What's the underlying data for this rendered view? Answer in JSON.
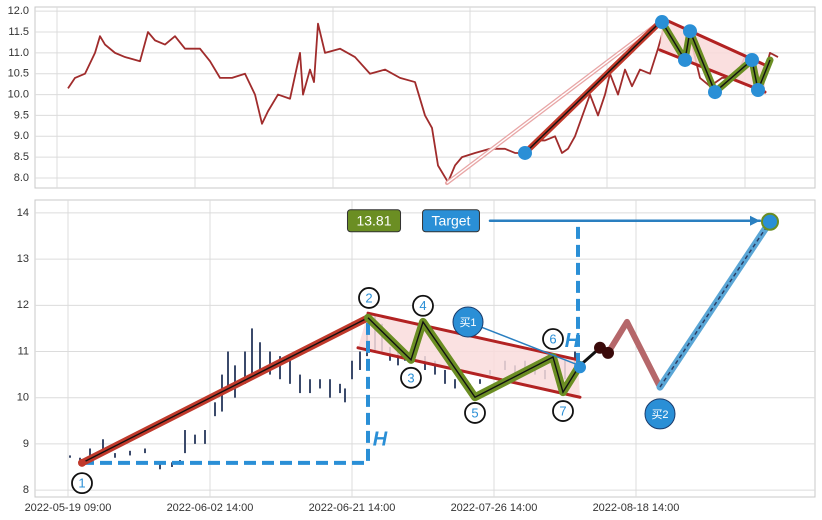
{
  "chart_data": [
    {
      "type": "line",
      "xlim": [
        -33,
        747
      ],
      "ylim": [
        7.76,
        12.1
      ],
      "grid": true,
      "xtick_labels": false,
      "xticks": [
        -11,
        127,
        265,
        402,
        539,
        677
      ],
      "yticks": [
        {
          "value": 8,
          "label": "8.0"
        },
        {
          "value": 8.5,
          "label": "8.5"
        },
        {
          "value": 9,
          "label": "9.0"
        },
        {
          "value": 9.5,
          "label": "9.5"
        },
        {
          "value": 10,
          "label": "10.0"
        },
        {
          "value": 10.5,
          "label": "10.5"
        },
        {
          "value": 11,
          "label": "11.0"
        },
        {
          "value": 11.5,
          "label": "11.5"
        },
        {
          "value": 12,
          "label": "12.0"
        }
      ],
      "x": [
        0,
        7,
        17,
        27,
        32,
        37,
        47,
        57,
        72,
        80,
        87,
        97,
        107,
        117,
        132,
        142,
        152,
        164,
        177,
        187,
        194,
        200,
        210,
        222,
        232,
        235,
        242,
        246,
        250,
        257,
        272,
        287,
        302,
        317,
        332,
        347,
        357,
        364,
        370,
        380,
        387,
        394,
        407,
        422,
        437,
        447,
        457,
        467,
        477,
        487,
        494,
        500,
        507,
        522,
        530,
        537,
        542,
        550,
        557,
        564,
        572,
        582,
        590,
        597,
        604,
        614,
        622,
        632,
        642,
        654,
        667,
        677,
        687,
        694,
        702,
        710
      ],
      "values": [
        10.15,
        10.4,
        10.5,
        11.0,
        11.4,
        11.2,
        11.0,
        10.9,
        10.8,
        11.5,
        11.3,
        11.2,
        11.4,
        11.1,
        11.1,
        10.8,
        10.4,
        10.4,
        10.5,
        10.0,
        9.3,
        9.6,
        10.0,
        9.9,
        11.0,
        10.0,
        10.6,
        10.3,
        11.7,
        11.0,
        11.1,
        10.9,
        10.5,
        10.6,
        10.4,
        10.3,
        9.5,
        9.2,
        8.3,
        7.9,
        8.3,
        8.5,
        8.6,
        8.7,
        8.7,
        8.6,
        8.6,
        8.9,
        8.9,
        9.0,
        8.6,
        8.7,
        9.0,
        10.0,
        9.5,
        10.0,
        10.5,
        10.0,
        10.6,
        10.2,
        10.6,
        10.5,
        11.1,
        11.7,
        11.3,
        10.8,
        11.4,
        10.4,
        10.2,
        10.4,
        10.4,
        10.9,
        10.6,
        10.3,
        11.0,
        10.9
      ],
      "color": "#a02c2c",
      "overlays": [
        {
          "style": "area",
          "color": "#f9d9d9",
          "x": [
            594,
            697,
            697,
            592
          ],
          "values": [
            11.83,
            10.71,
            10.06,
            11.07
          ]
        },
        {
          "style": "line",
          "color": "#e8a6a6",
          "width": 4,
          "inner": "#ffffff",
          "x": [
            379,
            594
          ],
          "values": [
            7.88,
            11.78
          ]
        },
        {
          "style": "line",
          "color": "#b22222",
          "width": 3,
          "x": [
            594,
            697
          ],
          "values": [
            11.83,
            10.71
          ]
        },
        {
          "style": "line",
          "color": "#b22222",
          "width": 3,
          "x": [
            592,
            697
          ],
          "values": [
            11.07,
            10.06
          ]
        },
        {
          "style": "line",
          "color": "#c0392b",
          "width": 6,
          "inner": "#111111",
          "x": [
            457,
            594
          ],
          "values": [
            8.6,
            11.78
          ]
        },
        {
          "style": "line",
          "color": "#6b8e23",
          "width": 7,
          "inner": "#111111",
          "x": [
            594,
            617,
            622,
            647,
            684,
            690,
            702
          ],
          "values": [
            11.74,
            10.83,
            11.52,
            10.06,
            10.83,
            10.11,
            10.83
          ]
        },
        {
          "style": "markers",
          "color": "#2a8fd6",
          "r": 7,
          "x": [
            457,
            594,
            622,
            617,
            647,
            684,
            690
          ],
          "values": [
            8.6,
            11.74,
            11.52,
            10.83,
            10.06,
            10.83,
            10.11
          ]
        }
      ]
    },
    {
      "type": "candlestick",
      "xlim": [
        -33,
        747
      ],
      "ylim": [
        7.85,
        14.28
      ],
      "grid": true,
      "xticks": [
        {
          "value": 0,
          "label": "2022-05-19 09:00"
        },
        {
          "value": 142,
          "label": "2022-06-02 14:00"
        },
        {
          "value": 284,
          "label": "2022-06-21 14:00"
        },
        {
          "value": 426,
          "label": "2022-07-26 14:00"
        },
        {
          "value": 568,
          "label": "2022-08-18 14:00"
        }
      ],
      "yticks": [
        8,
        9,
        10,
        11,
        12,
        13,
        14
      ],
      "color": "#3b4a6b",
      "x": [
        2,
        12,
        22,
        35,
        47,
        62,
        77,
        92,
        104,
        112,
        117,
        127,
        137,
        147,
        154,
        160,
        167,
        177,
        184,
        192,
        202,
        212,
        222,
        232,
        242,
        252,
        262,
        272,
        277,
        284,
        292,
        299,
        307,
        314,
        322,
        330,
        337,
        347,
        357,
        367,
        377,
        387,
        402,
        412,
        422,
        437,
        447,
        457,
        467,
        477,
        487,
        497,
        507
      ],
      "low": [
        8.7,
        8.65,
        8.7,
        8.75,
        8.7,
        8.75,
        8.8,
        8.45,
        8.5,
        8.55,
        8.8,
        9.0,
        9.0,
        9.6,
        9.7,
        10.2,
        10.0,
        10.3,
        10.5,
        10.6,
        10.5,
        10.4,
        10.3,
        10.1,
        10.1,
        10.2,
        10.0,
        10.1,
        9.9,
        10.4,
        10.6,
        10.9,
        11.0,
        11.0,
        10.8,
        10.7,
        10.8,
        10.9,
        10.6,
        10.5,
        10.3,
        10.2,
        10.1,
        10.3,
        10.5,
        10.6,
        10.5,
        10.6,
        10.5,
        10.4,
        10.6,
        10.4,
        10.6
      ],
      "high": [
        8.75,
        8.7,
        8.9,
        9.1,
        8.8,
        8.85,
        8.9,
        8.6,
        8.6,
        8.65,
        9.3,
        9.2,
        9.3,
        9.9,
        10.5,
        11.0,
        10.7,
        11.0,
        11.5,
        11.2,
        11.0,
        10.9,
        10.8,
        10.5,
        10.4,
        10.4,
        10.4,
        10.3,
        10.2,
        10.8,
        11.0,
        11.8,
        11.8,
        11.6,
        11.1,
        11.2,
        11.0,
        11.2,
        10.9,
        10.8,
        10.6,
        10.4,
        10.3,
        10.4,
        10.6,
        10.8,
        10.7,
        10.8,
        10.7,
        10.6,
        10.9,
        10.8,
        11.0
      ],
      "overlays": [
        {
          "style": "area",
          "color": "#f9dcdc",
          "x": [
            300,
            510,
            512,
            290
          ],
          "values": [
            11.83,
            10.82,
            10.01,
            11.08
          ]
        },
        {
          "style": "line",
          "color": "#b22222",
          "width": 3,
          "x": [
            300,
            510
          ],
          "values": [
            11.83,
            10.82
          ]
        },
        {
          "style": "line",
          "color": "#b22222",
          "width": 3,
          "x": [
            290,
            512
          ],
          "values": [
            11.08,
            10.01
          ]
        },
        {
          "style": "line",
          "color": "#2a8fd6",
          "width": 4,
          "dash": true,
          "x": [
            14,
            300,
            300
          ],
          "values": [
            8.59,
            8.59,
            11.68
          ]
        },
        {
          "style": "line",
          "color": "#2a8fd6",
          "width": 4,
          "dash": true,
          "x": [
            510,
            510
          ],
          "values": [
            10.71,
            13.83
          ]
        },
        {
          "style": "line",
          "color": "#2a7fc0",
          "width": 2.5,
          "arrow": true,
          "x": [
            422,
            692
          ],
          "values": [
            13.83,
            13.83
          ]
        },
        {
          "style": "line",
          "color": "#c0392b",
          "width": 7,
          "inner": "#111111",
          "x": [
            14,
            300
          ],
          "values": [
            8.59,
            11.73
          ]
        },
        {
          "style": "line",
          "color": "#6b8e23",
          "width": 8,
          "inner": "#111111",
          "x": [
            300,
            343,
            355,
            407,
            485,
            495,
            512
          ],
          "values": [
            11.73,
            10.82,
            11.64,
            10.01,
            10.88,
            10.12,
            10.71
          ]
        },
        {
          "style": "line",
          "color": "#2a7fc0",
          "width": 1.5,
          "x": [
            400,
            510
          ],
          "values": [
            11.64,
            10.71
          ]
        },
        {
          "style": "line",
          "color": "#111111",
          "width": 3,
          "x": [
            510,
            532
          ],
          "values": [
            10.66,
            11.08
          ]
        },
        {
          "style": "line",
          "color": "#b5676a",
          "width": 6,
          "x": [
            540,
            559,
            592
          ],
          "values": [
            10.97,
            11.64,
            10.23
          ]
        },
        {
          "style": "line",
          "color": "#5aa6d6",
          "width": 7,
          "inner": "#2a3a60",
          "x": [
            592,
            702
          ],
          "values": [
            10.23,
            13.81
          ]
        },
        {
          "style": "markers",
          "color": "#3a0a0a",
          "r": 6,
          "x": [
            532,
            540
          ],
          "values": [
            11.08,
            10.97
          ]
        },
        {
          "style": "markers",
          "color": "#2a8fd6",
          "r": 6,
          "x": [
            512
          ],
          "values": [
            10.66
          ]
        },
        {
          "style": "markers",
          "color": "#2a8fd6",
          "r": 8,
          "x": [
            702
          ],
          "values": [
            13.81
          ]
        },
        {
          "style": "markers",
          "color": "#c0392b",
          "r": 4,
          "x": [
            14
          ],
          "values": [
            8.59
          ]
        }
      ],
      "annotations": [
        {
          "text": "1",
          "style": "circle",
          "x": 14,
          "y": 8.15
        },
        {
          "text": "2",
          "style": "circle",
          "x": 301,
          "y": 12.16
        },
        {
          "text": "3",
          "style": "circle",
          "x": 343,
          "y": 10.43
        },
        {
          "text": "4",
          "style": "circle",
          "x": 355,
          "y": 11.99
        },
        {
          "text": "5",
          "style": "circle",
          "x": 407,
          "y": 9.67
        },
        {
          "text": "6",
          "style": "circle",
          "x": 485,
          "y": 11.27
        },
        {
          "text": "7",
          "style": "circle",
          "x": 495,
          "y": 9.71
        },
        {
          "text": "买1",
          "style": "bubble",
          "x": 400,
          "y": 11.64
        },
        {
          "text": "买2",
          "style": "bubble",
          "x": 592,
          "y": 9.65
        },
        {
          "text": "13.81",
          "style": "box",
          "color": "#6b8e23",
          "x": 306,
          "y": 13.83
        },
        {
          "text": "Target",
          "style": "box",
          "color": "#2a8fd6",
          "x": 383,
          "y": 13.83
        },
        {
          "text": "H",
          "style": "letter",
          "color": "#2a8fd6",
          "x": 312,
          "y": 9.08
        },
        {
          "text": "H",
          "style": "letter",
          "color": "#2a8fd6",
          "x": 504,
          "y": 11.21
        }
      ]
    }
  ]
}
